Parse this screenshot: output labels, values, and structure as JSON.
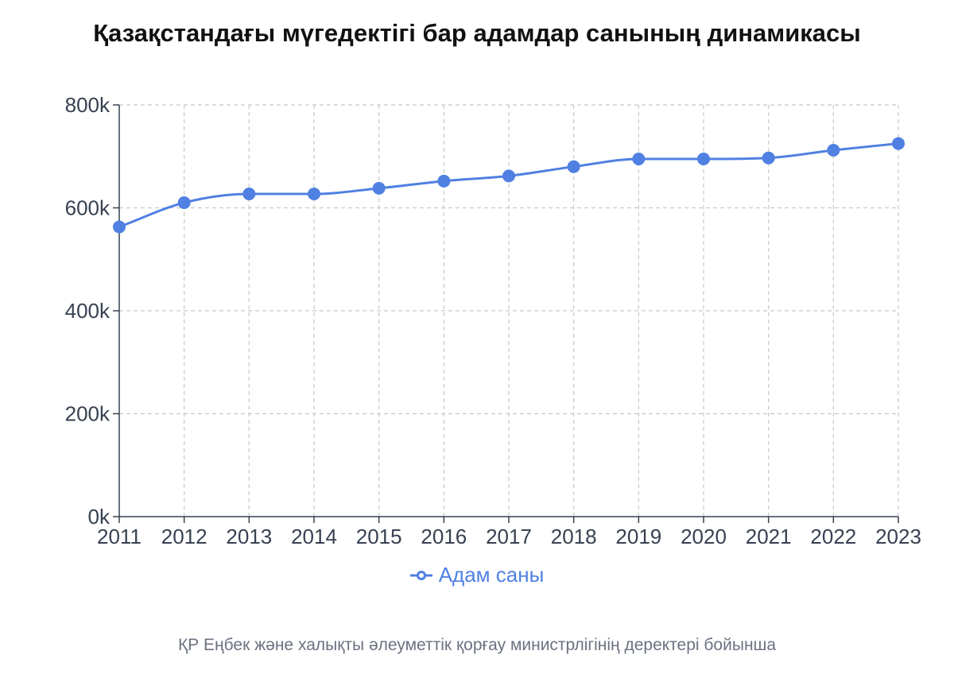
{
  "title": "Қазақстандағы мүгедектігі бар адамдар санының динамикасы",
  "source": "ҚР Еңбек және халықты әлеуметтік қорғау министрлігінің деректері бойынша",
  "colors": {
    "series": "#4f80e2",
    "grid": "#c8c8c8",
    "axis": "#374151",
    "text": "#374151",
    "source": "#6b7280"
  },
  "chart_data": {
    "type": "line",
    "x": [
      "2011",
      "2012",
      "2013",
      "2014",
      "2015",
      "2016",
      "2017",
      "2018",
      "2019",
      "2020",
      "2021",
      "2022",
      "2023"
    ],
    "series": [
      {
        "name": "Адам саны",
        "values": [
          563000,
          610000,
          627000,
          627000,
          638000,
          652000,
          662000,
          680000,
          695000,
          695000,
          697000,
          712000,
          725000
        ]
      }
    ],
    "ylim": [
      0,
      800000
    ],
    "yticks": [
      0,
      200000,
      400000,
      600000,
      800000
    ],
    "ytick_labels": [
      "0k",
      "200k",
      "400k",
      "600k",
      "800k"
    ],
    "grid": true,
    "grid_style": "dashed",
    "legend_position": "bottom-center",
    "smooth": true
  }
}
